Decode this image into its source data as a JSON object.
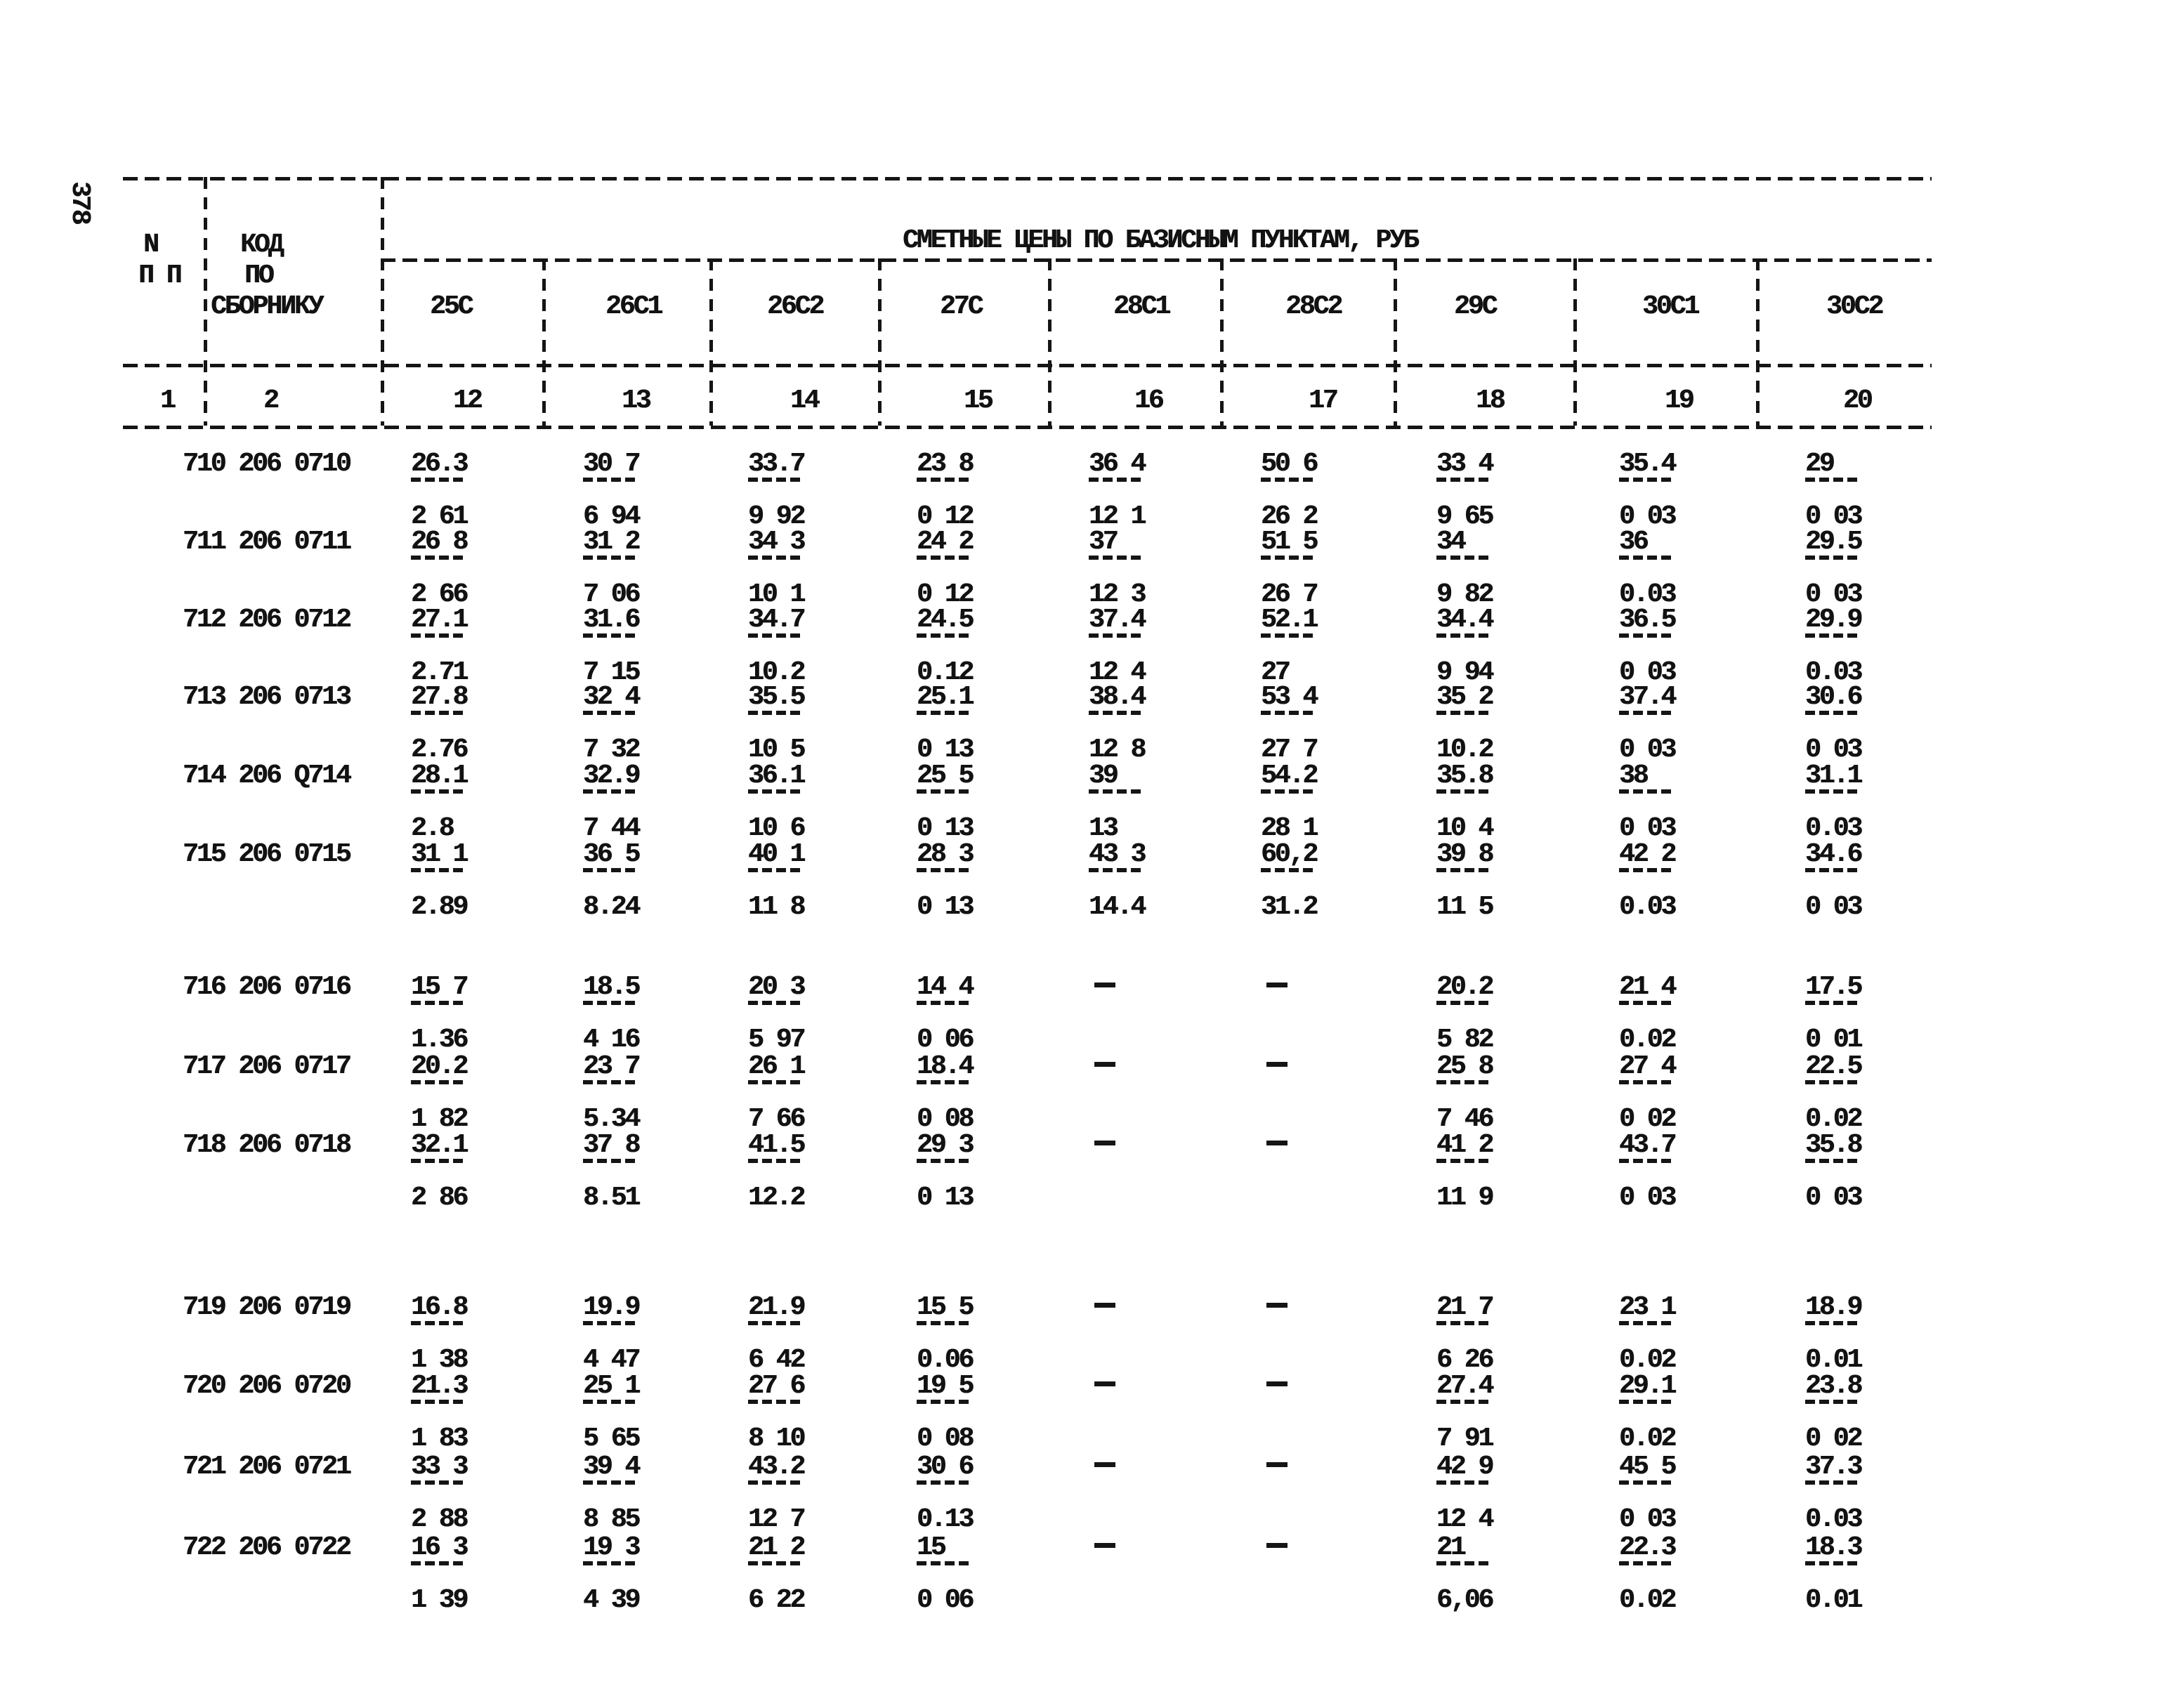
{
  "page_number": "378",
  "table": {
    "title": "СМЕТНЫЕ ЦЕНЫ ПО БАЗИСНЫМ ПУНКТАМ, РУБ",
    "row_header": {
      "line1": "N",
      "line2": "П П",
      "col_num": "1"
    },
    "code_header": {
      "line1": "КОД",
      "line2": "ПО",
      "line3": "СБОРНИКУ",
      "col_num": "2"
    },
    "price_columns": [
      {
        "label": "25C",
        "num": "12"
      },
      {
        "label": "26C1",
        "num": "13"
      },
      {
        "label": "26C2",
        "num": "14"
      },
      {
        "label": "27C",
        "num": "15"
      },
      {
        "label": "28C1",
        "num": "16"
      },
      {
        "label": "28C2",
        "num": "17"
      },
      {
        "label": "29C",
        "num": "18"
      },
      {
        "label": "30C1",
        "num": "19"
      },
      {
        "label": "30C2",
        "num": "20"
      }
    ],
    "missing_marker": "-",
    "rows": [
      {
        "id": "710 206 0710",
        "cells": [
          [
            "26.3",
            "2 61"
          ],
          [
            "30 7",
            "6 94"
          ],
          [
            "33.7",
            "9 92"
          ],
          [
            "23 8",
            "0 12"
          ],
          [
            "36 4",
            "12 1"
          ],
          [
            "50 6",
            "26 2"
          ],
          [
            "33 4",
            "9 65"
          ],
          [
            "35.4",
            "0 03"
          ],
          [
            "29",
            "0 03"
          ]
        ]
      },
      {
        "id": "711 206 0711",
        "cells": [
          [
            "26 8",
            "2 66"
          ],
          [
            "31 2",
            "7 06"
          ],
          [
            "34 3",
            "10 1"
          ],
          [
            "24 2",
            "0 12"
          ],
          [
            "37",
            "12 3"
          ],
          [
            "51 5",
            "26 7"
          ],
          [
            "34",
            "9 82"
          ],
          [
            "36",
            "0.03"
          ],
          [
            "29.5",
            "0 03"
          ]
        ]
      },
      {
        "id": "712 206 0712",
        "cells": [
          [
            "27.1",
            "2.71"
          ],
          [
            "31.6",
            "7 15"
          ],
          [
            "34.7",
            "10.2"
          ],
          [
            "24.5",
            "0.12"
          ],
          [
            "37.4",
            "12 4"
          ],
          [
            "52.1",
            "27"
          ],
          [
            "34.4",
            "9 94"
          ],
          [
            "36.5",
            "0 03"
          ],
          [
            "29.9",
            "0.03"
          ]
        ]
      },
      {
        "id": "713 206 0713",
        "cells": [
          [
            "27.8",
            "2.76"
          ],
          [
            "32 4",
            "7 32"
          ],
          [
            "35.5",
            "10 5"
          ],
          [
            "25.1",
            "0 13"
          ],
          [
            "38.4",
            "12 8"
          ],
          [
            "53 4",
            "27 7"
          ],
          [
            "35 2",
            "10.2"
          ],
          [
            "37.4",
            "0 03"
          ],
          [
            "30.6",
            "0 03"
          ]
        ]
      },
      {
        "id": "714 206 Q714",
        "cells": [
          [
            "28.1",
            "2.8"
          ],
          [
            "32.9",
            "7 44"
          ],
          [
            "36.1",
            "10 6"
          ],
          [
            "25 5",
            "0 13"
          ],
          [
            "39",
            "13"
          ],
          [
            "54.2",
            "28 1"
          ],
          [
            "35.8",
            "10 4"
          ],
          [
            "38",
            "0 03"
          ],
          [
            "31.1",
            "0.03"
          ]
        ]
      },
      {
        "id": "715 206 0715",
        "cells": [
          [
            "31 1",
            "2.89"
          ],
          [
            "36 5",
            "8.24"
          ],
          [
            "40 1",
            "11 8"
          ],
          [
            "28 3",
            "0 13"
          ],
          [
            "43 3",
            "14.4"
          ],
          [
            "60,2",
            "31.2"
          ],
          [
            "39 8",
            "11 5"
          ],
          [
            "42 2",
            "0.03"
          ],
          [
            "34.6",
            "0 03"
          ]
        ]
      },
      {
        "id": "716 206 0716",
        "cells": [
          [
            "15 7",
            "1.36"
          ],
          [
            "18.5",
            "4 16"
          ],
          [
            "20 3",
            "5 97"
          ],
          [
            "14 4",
            "0 06"
          ],
          "-",
          "-",
          [
            "20.2",
            "5 82"
          ],
          [
            "21 4",
            "0.02"
          ],
          [
            "17.5",
            "0 01"
          ]
        ]
      },
      {
        "id": "717 206 0717",
        "cells": [
          [
            "20.2",
            "1 82"
          ],
          [
            "23 7",
            "5.34"
          ],
          [
            "26 1",
            "7 66"
          ],
          [
            "18.4",
            "0 08"
          ],
          "-",
          "-",
          [
            "25 8",
            "7 46"
          ],
          [
            "27 4",
            "0 02"
          ],
          [
            "22.5",
            "0.02"
          ]
        ]
      },
      {
        "id": "718 206 0718",
        "cells": [
          [
            "32.1",
            "2 86"
          ],
          [
            "37 8",
            "8.51"
          ],
          [
            "41.5",
            "12.2"
          ],
          [
            "29 3",
            "0 13"
          ],
          "-",
          "-",
          [
            "41 2",
            "11 9"
          ],
          [
            "43.7",
            "0 03"
          ],
          [
            "35.8",
            "0 03"
          ]
        ]
      },
      {
        "id": "719 206 0719",
        "cells": [
          [
            "16.8",
            "1 38"
          ],
          [
            "19.9",
            "4 47"
          ],
          [
            "21.9",
            "6 42"
          ],
          [
            "15 5",
            "0.06"
          ],
          "-",
          "-",
          [
            "21 7",
            "6 26"
          ],
          [
            "23 1",
            "0.02"
          ],
          [
            "18.9",
            "0.01"
          ]
        ]
      },
      {
        "id": "720 206 0720",
        "cells": [
          [
            "21.3",
            "1 83"
          ],
          [
            "25 1",
            "5 65"
          ],
          [
            "27 6",
            "8 10"
          ],
          [
            "19 5",
            "0 08"
          ],
          "-",
          "-",
          [
            "27.4",
            "7 91"
          ],
          [
            "29.1",
            "0.02"
          ],
          [
            "23.8",
            "0 02"
          ]
        ]
      },
      {
        "id": "721 206 0721",
        "cells": [
          [
            "33 3",
            "2 88"
          ],
          [
            "39 4",
            "8 85"
          ],
          [
            "43.2",
            "12 7"
          ],
          [
            "30 6",
            "0.13"
          ],
          "-",
          "-",
          [
            "42 9",
            "12 4"
          ],
          [
            "45 5",
            "0 03"
          ],
          [
            "37.3",
            "0.03"
          ]
        ]
      },
      {
        "id": "722 206 0722",
        "cells": [
          [
            "16 3",
            "1 39"
          ],
          [
            "19 3",
            "4 39"
          ],
          [
            "21 2",
            "6 22"
          ],
          [
            "15",
            "0 06"
          ],
          "-",
          "-",
          [
            "21",
            "6,06"
          ],
          [
            "22.3",
            "0.02"
          ],
          [
            "18.3",
            "0.01"
          ]
        ]
      }
    ]
  }
}
